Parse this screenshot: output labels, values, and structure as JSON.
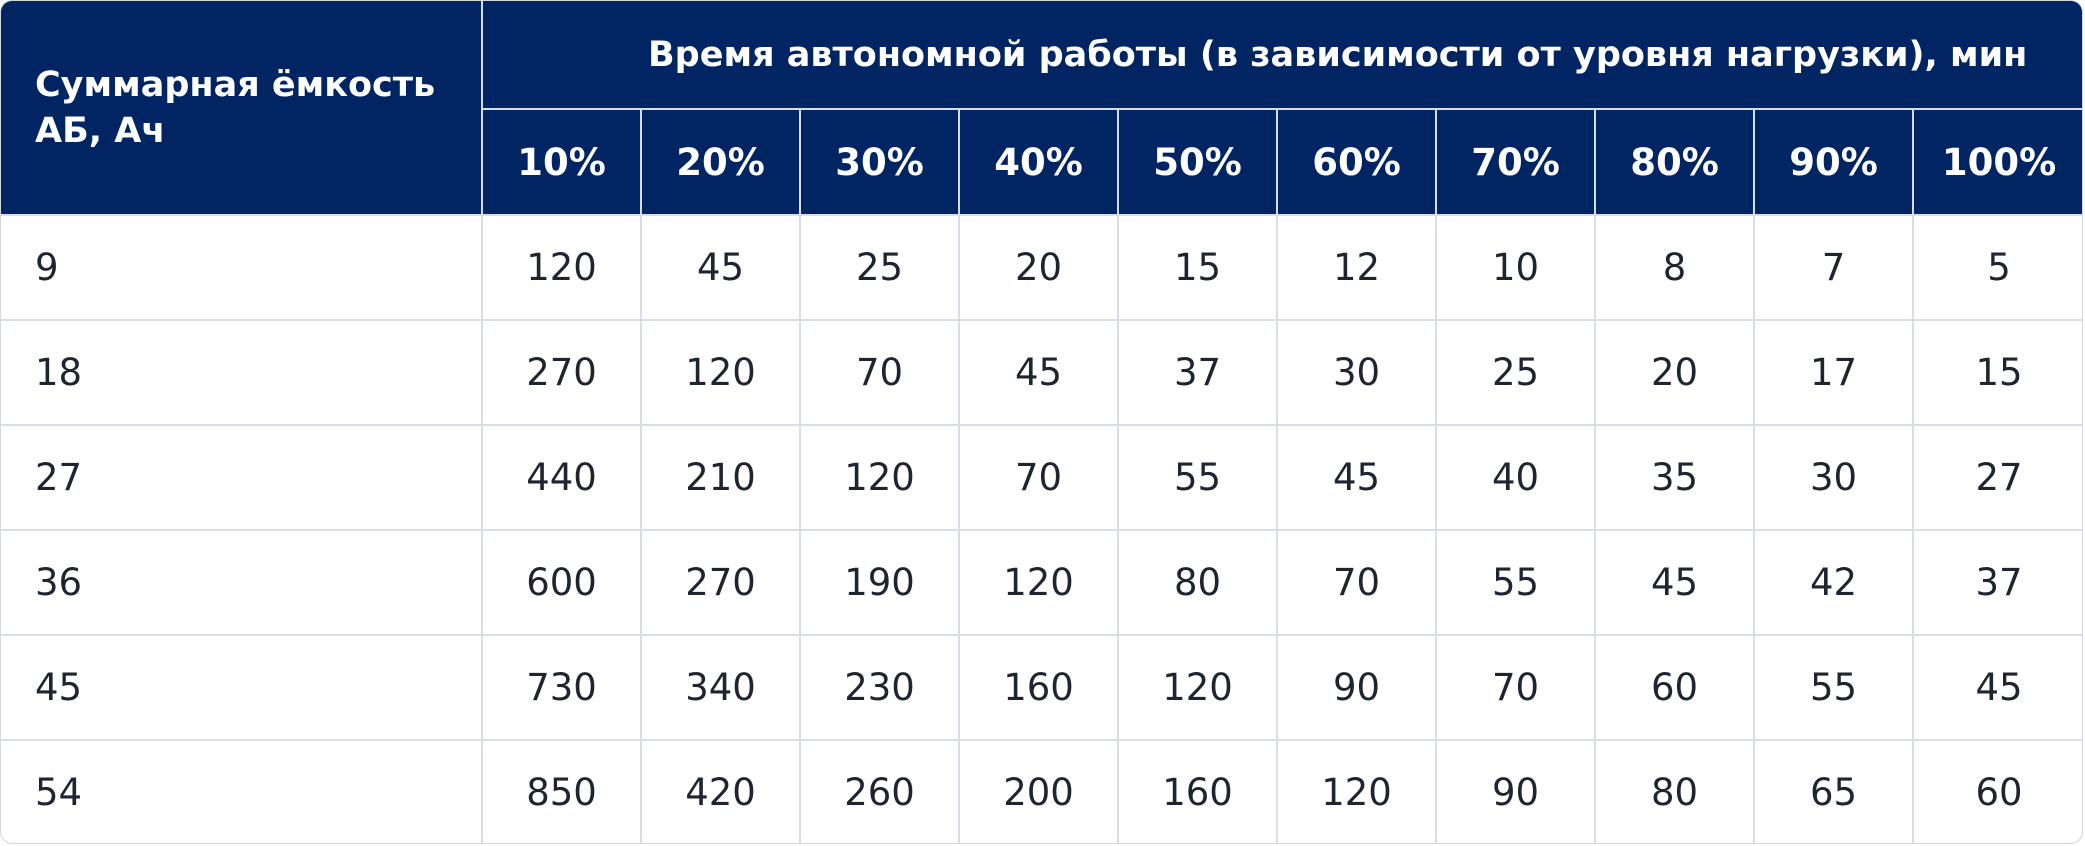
{
  "table": {
    "corner_header": "Суммарная ёмкость АБ, Ач",
    "group_header": "Время автономной работы (в зависимости от уровня нагрузки), мин",
    "load_levels": [
      "10%",
      "20%",
      "30%",
      "40%",
      "50%",
      "60%",
      "70%",
      "80%",
      "90%",
      "100%"
    ],
    "rows": [
      {
        "capacity": "9",
        "values": [
          "120",
          "45",
          "25",
          "20",
          "15",
          "12",
          "10",
          "8",
          "7",
          "5"
        ]
      },
      {
        "capacity": "18",
        "values": [
          "270",
          "120",
          "70",
          "45",
          "37",
          "30",
          "25",
          "20",
          "17",
          "15"
        ]
      },
      {
        "capacity": "27",
        "values": [
          "440",
          "210",
          "120",
          "70",
          "55",
          "45",
          "40",
          "35",
          "30",
          "27"
        ]
      },
      {
        "capacity": "36",
        "values": [
          "600",
          "270",
          "190",
          "120",
          "80",
          "70",
          "55",
          "45",
          "42",
          "37"
        ]
      },
      {
        "capacity": "45",
        "values": [
          "730",
          "340",
          "230",
          "160",
          "120",
          "90",
          "70",
          "60",
          "55",
          "45"
        ]
      },
      {
        "capacity": "54",
        "values": [
          "850",
          "420",
          "260",
          "200",
          "160",
          "120",
          "90",
          "80",
          "65",
          "60"
        ]
      }
    ]
  },
  "colors": {
    "header_background": "#002562",
    "header_text": "#ffffff",
    "body_text": "#1f2530",
    "grid_line": "#d8dde6"
  }
}
